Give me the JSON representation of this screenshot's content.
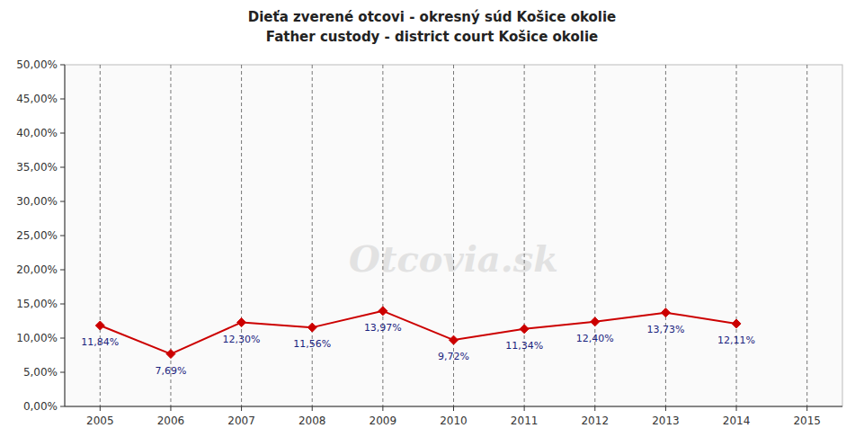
{
  "chart_data": {
    "type": "line",
    "title": "Dieťa zverené otcovi - okresný súd Košice okolie",
    "subtitle": "Father custody - district court Košice okolie",
    "x": [
      2005,
      2006,
      2007,
      2008,
      2009,
      2010,
      2011,
      2012,
      2013,
      2014
    ],
    "values": [
      0.1184,
      0.0769,
      0.123,
      0.1156,
      0.1397,
      0.0972,
      0.1134,
      0.124,
      0.1373,
      0.1211
    ],
    "value_labels": [
      "11,84%",
      "7,69%",
      "12,30%",
      "11,56%",
      "13,97%",
      "9,72%",
      "11,34%",
      "12,40%",
      "13,73%",
      "12,11%"
    ],
    "data_labels": true,
    "xlim": [
      2004.5,
      2015.5
    ],
    "xticks": [
      2005,
      2006,
      2007,
      2008,
      2009,
      2010,
      2011,
      2012,
      2013,
      2014,
      2015
    ],
    "ylim": [
      0.0,
      0.5
    ],
    "yticks": [
      {
        "value": 0.0,
        "label": "0,00%"
      },
      {
        "value": 0.05,
        "label": "5,00%"
      },
      {
        "value": 0.1,
        "label": "10,00%"
      },
      {
        "value": 0.15,
        "label": "15,00%"
      },
      {
        "value": 0.2,
        "label": "20,00%"
      },
      {
        "value": 0.25,
        "label": "25,00%"
      },
      {
        "value": 0.3,
        "label": "30,00%"
      },
      {
        "value": 0.35,
        "label": "35,00%"
      },
      {
        "value": 0.4,
        "label": "40,00%"
      },
      {
        "value": 0.45,
        "label": "45,00%"
      },
      {
        "value": 0.5,
        "label": "50,00%"
      }
    ],
    "grid": "x",
    "color": "#cc0000",
    "marker": "diamond",
    "annotations": [
      "Otcovia.sk"
    ]
  }
}
